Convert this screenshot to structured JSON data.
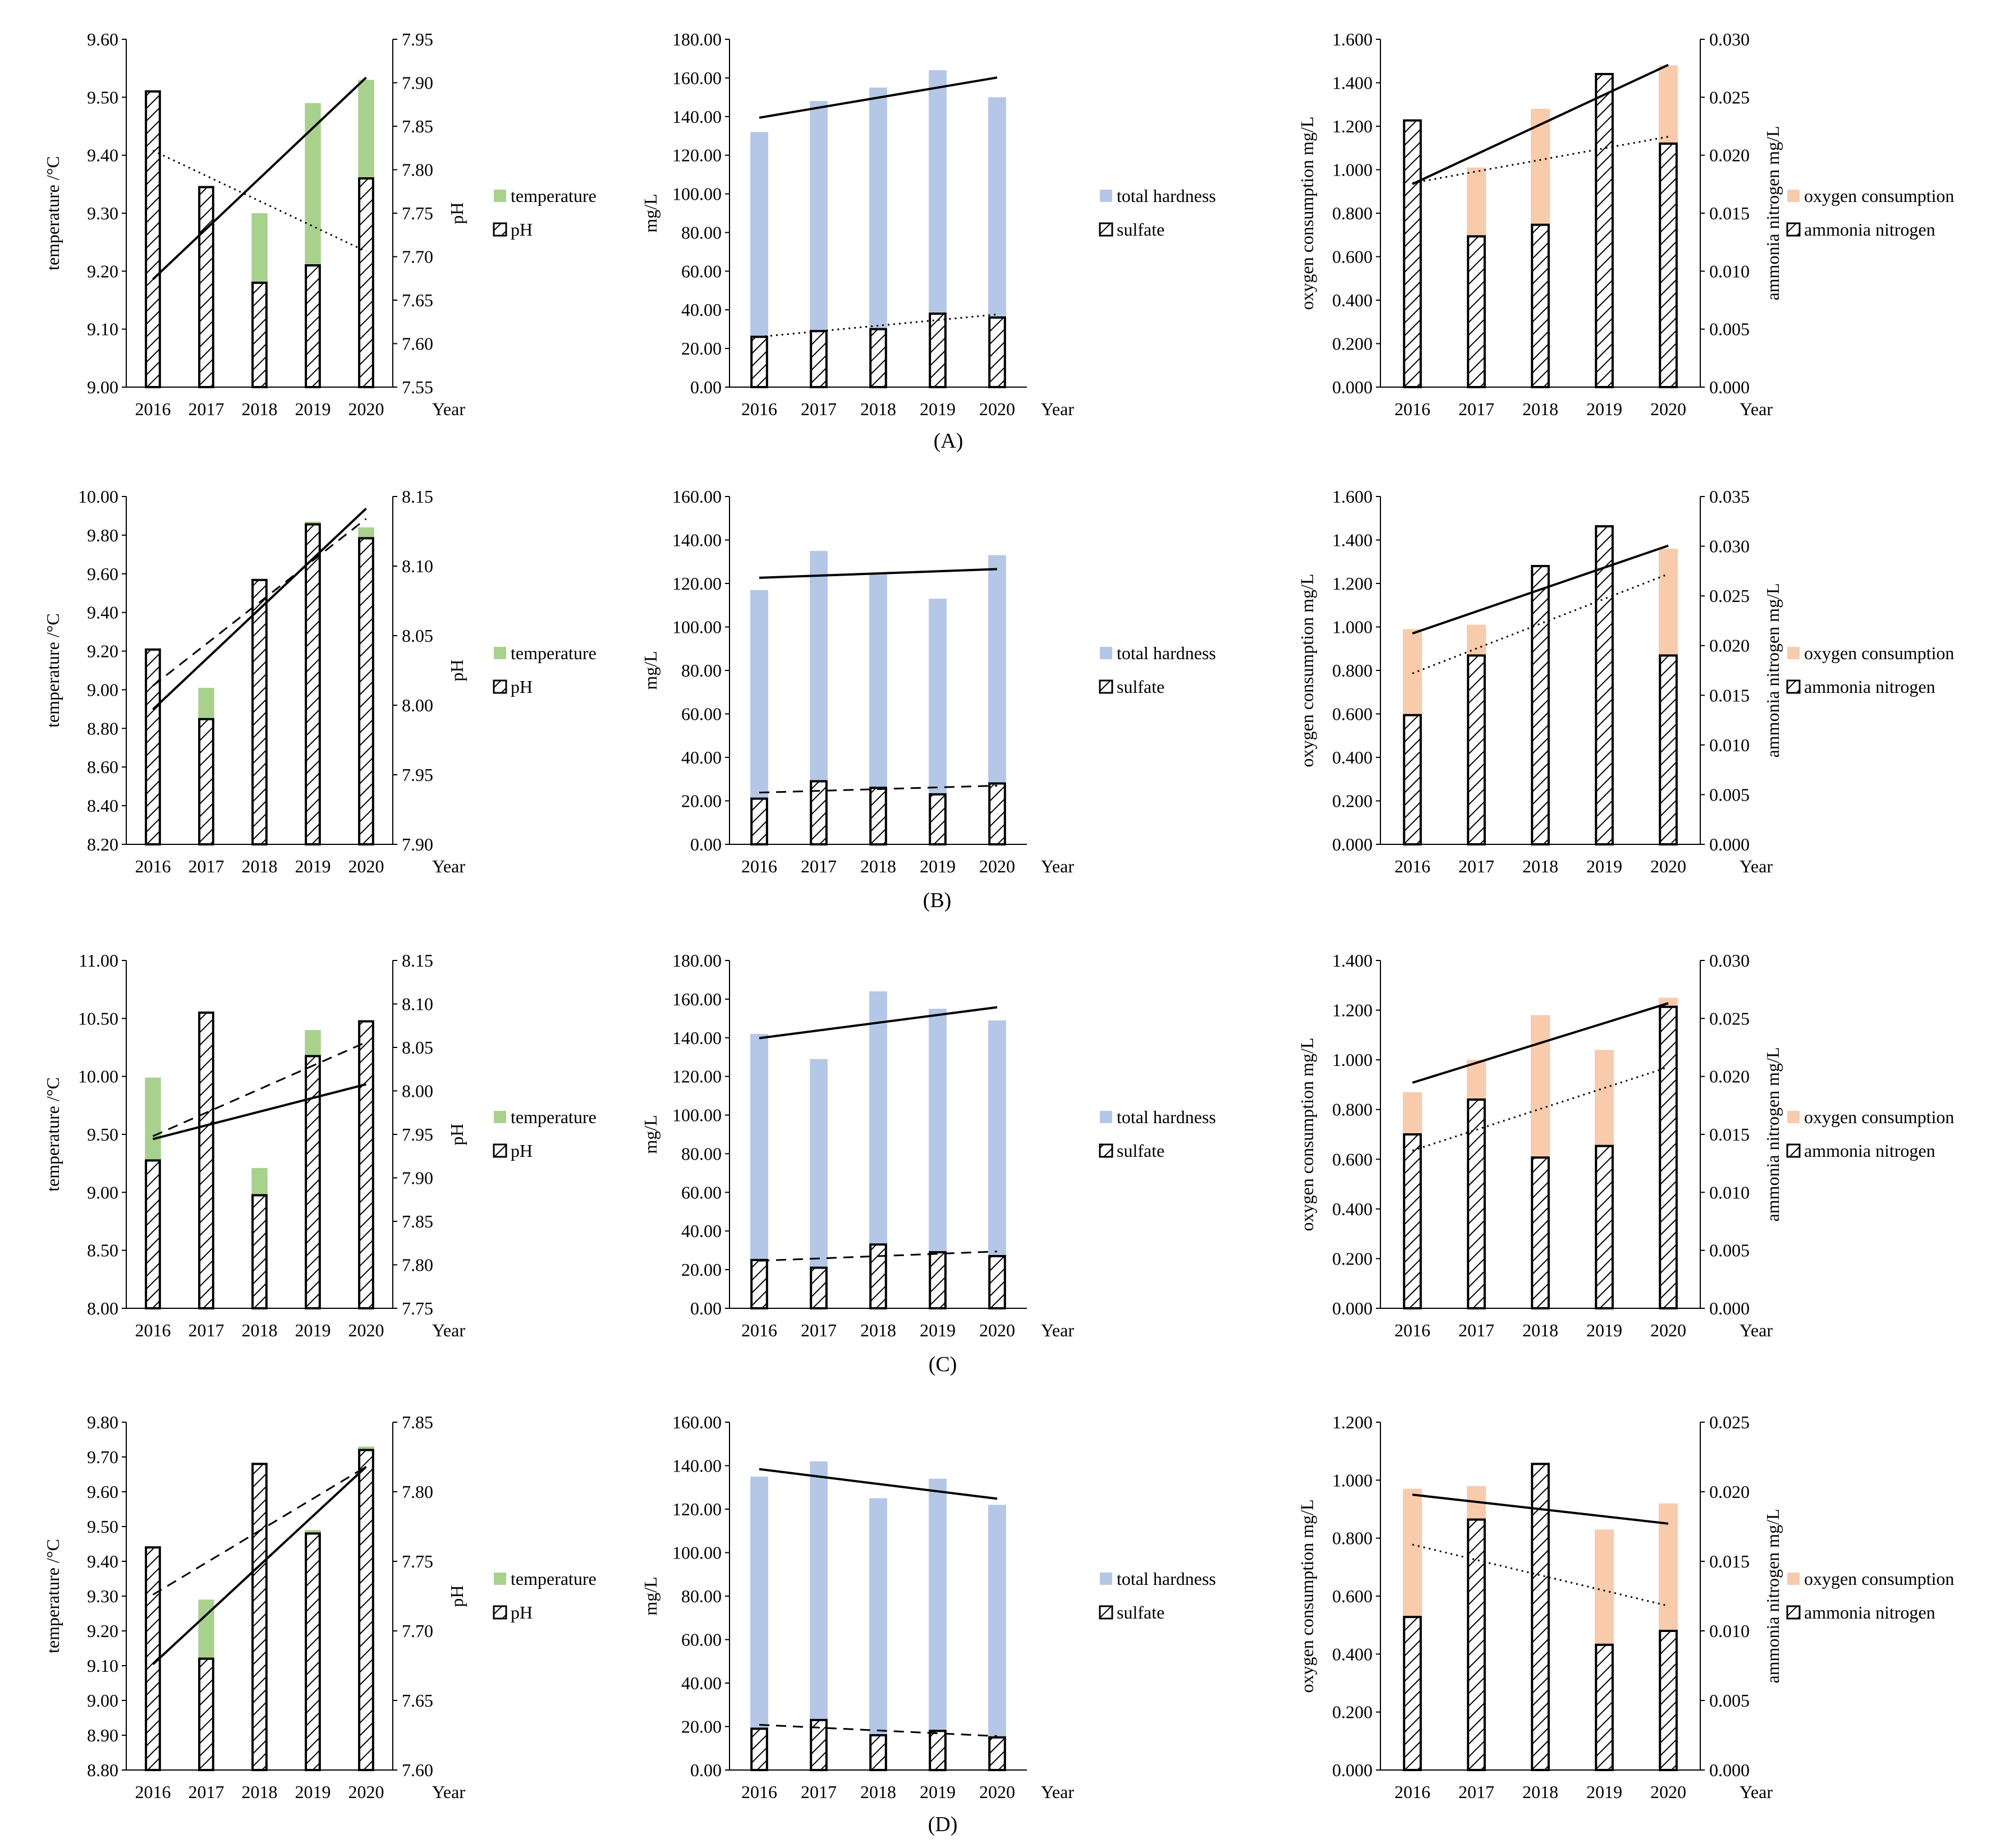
{
  "colors": {
    "temperature": "#a9d18e",
    "total_hardness": "#b4c7e7",
    "oxygen_consumption": "#f8cbad",
    "pattern_bar": "#ffffff",
    "axis": "#000000"
  },
  "panel_labels": [
    "(A)",
    "(B)",
    "(C)",
    "(D)"
  ],
  "year_label": "Year",
  "chart_data": [
    {
      "row": 0,
      "col": 0,
      "type": "bar",
      "categories": [
        "2016",
        "2017",
        "2018",
        "2019",
        "2020"
      ],
      "left_axis": {
        "label": "temperature /°C",
        "min": 9.0,
        "max": 9.6,
        "step": 0.1,
        "decimals": 2
      },
      "right_axis": {
        "label": "pH",
        "min": 7.55,
        "max": 7.95,
        "step": 0.05,
        "decimals": 2
      },
      "series": [
        {
          "name": "temperature",
          "axis": "left",
          "style": "solid",
          "color_key": "temperature",
          "values": [
            9.2,
            9.28,
            9.3,
            9.49,
            9.53
          ],
          "trend": "solid"
        },
        {
          "name": "pH",
          "axis": "right",
          "style": "hatched",
          "values": [
            7.89,
            7.78,
            7.67,
            7.69,
            7.79
          ],
          "trend": "dotted"
        }
      ]
    },
    {
      "row": 0,
      "col": 1,
      "type": "bar",
      "categories": [
        "2016",
        "2017",
        "2018",
        "2019",
        "2020"
      ],
      "left_axis": {
        "label": "mg/L",
        "min": 0,
        "max": 180,
        "step": 20,
        "decimals": 2
      },
      "series": [
        {
          "name": "total hardness",
          "axis": "left",
          "style": "solid",
          "color_key": "total_hardness",
          "values": [
            132,
            148,
            155,
            164,
            150
          ],
          "trend": "solid"
        },
        {
          "name": "sulfate",
          "axis": "left",
          "style": "hatched",
          "values": [
            26,
            29,
            30,
            38,
            36
          ],
          "trend": "dotted"
        }
      ]
    },
    {
      "row": 0,
      "col": 2,
      "type": "bar",
      "categories": [
        "2016",
        "2017",
        "2018",
        "2019",
        "2020"
      ],
      "left_axis": {
        "label": "oxygen consumption  mg/L",
        "min": 0,
        "max": 1.6,
        "step": 0.2,
        "decimals": 3
      },
      "right_axis": {
        "label": "ammonia nitrogen  mg/L",
        "min": 0,
        "max": 0.03,
        "step": 0.005,
        "decimals": 3
      },
      "series": [
        {
          "name": "oxygen consumption",
          "axis": "left",
          "style": "solid",
          "color_key": "oxygen_consumption",
          "values": [
            0.95,
            1.01,
            1.28,
            1.32,
            1.48
          ],
          "trend": "solid"
        },
        {
          "name": "ammonia nitrogen",
          "axis": "right",
          "style": "hatched",
          "values": [
            0.023,
            0.013,
            0.014,
            0.027,
            0.021
          ],
          "trend": "dotted"
        }
      ]
    },
    {
      "row": 1,
      "col": 0,
      "type": "bar",
      "categories": [
        "2016",
        "2017",
        "2018",
        "2019",
        "2020"
      ],
      "left_axis": {
        "label": "temperature /°C",
        "min": 8.2,
        "max": 10.0,
        "step": 0.2,
        "decimals": 2
      },
      "right_axis": {
        "label": "pH",
        "min": 7.9,
        "max": 8.15,
        "step": 0.05,
        "decimals": 2
      },
      "series": [
        {
          "name": "temperature",
          "axis": "left",
          "style": "solid",
          "color_key": "temperature",
          "values": [
            8.97,
            9.01,
            9.4,
            9.87,
            9.84
          ],
          "trend": "solid"
        },
        {
          "name": "pH",
          "axis": "right",
          "style": "hatched",
          "values": [
            8.04,
            7.99,
            8.09,
            8.13,
            8.12
          ],
          "trend": "dashed"
        }
      ]
    },
    {
      "row": 1,
      "col": 1,
      "type": "bar",
      "categories": [
        "2016",
        "2017",
        "2018",
        "2019",
        "2020"
      ],
      "left_axis": {
        "label": "mg/L",
        "min": 0,
        "max": 160,
        "step": 20,
        "decimals": 2
      },
      "series": [
        {
          "name": "total hardness",
          "axis": "left",
          "style": "solid",
          "color_key": "total_hardness",
          "values": [
            117,
            135,
            125,
            113,
            133
          ],
          "trend": "solid"
        },
        {
          "name": "sulfate",
          "axis": "left",
          "style": "hatched",
          "values": [
            21,
            29,
            26,
            23,
            28
          ],
          "trend": "dashed"
        }
      ]
    },
    {
      "row": 1,
      "col": 2,
      "type": "bar",
      "categories": [
        "2016",
        "2017",
        "2018",
        "2019",
        "2020"
      ],
      "left_axis": {
        "label": "oxygen consumption  mg/L",
        "min": 0,
        "max": 1.6,
        "step": 0.2,
        "decimals": 3
      },
      "right_axis": {
        "label": "ammonia nitrogen  mg/L",
        "min": 0,
        "max": 0.035,
        "step": 0.005,
        "decimals": 3
      },
      "series": [
        {
          "name": "oxygen consumption",
          "axis": "left",
          "style": "solid",
          "color_key": "oxygen_consumption",
          "values": [
            0.99,
            1.01,
            1.22,
            1.28,
            1.36
          ],
          "trend": "solid"
        },
        {
          "name": "ammonia nitrogen",
          "axis": "right",
          "style": "hatched",
          "values": [
            0.013,
            0.019,
            0.028,
            0.032,
            0.019
          ],
          "trend": "dotted"
        }
      ]
    },
    {
      "row": 2,
      "col": 0,
      "type": "bar",
      "categories": [
        "2016",
        "2017",
        "2018",
        "2019",
        "2020"
      ],
      "left_axis": {
        "label": "temperature /°C",
        "min": 8.0,
        "max": 11.0,
        "step": 0.5,
        "decimals": 2
      },
      "right_axis": {
        "label": "pH",
        "min": 7.75,
        "max": 8.15,
        "step": 0.05,
        "decimals": 2
      },
      "series": [
        {
          "name": "temperature",
          "axis": "left",
          "style": "solid",
          "color_key": "temperature",
          "values": [
            9.99,
            9.0,
            9.21,
            10.4,
            9.88
          ],
          "trend": "solid"
        },
        {
          "name": "pH",
          "axis": "right",
          "style": "hatched",
          "values": [
            7.92,
            8.09,
            7.88,
            8.04,
            8.08
          ],
          "trend": "dashed"
        }
      ]
    },
    {
      "row": 2,
      "col": 1,
      "type": "bar",
      "categories": [
        "2016",
        "2017",
        "2018",
        "2019",
        "2020"
      ],
      "left_axis": {
        "label": "mg/L",
        "min": 0,
        "max": 180,
        "step": 20,
        "decimals": 2
      },
      "series": [
        {
          "name": "total hardness",
          "axis": "left",
          "style": "solid",
          "color_key": "total_hardness",
          "values": [
            142,
            129,
            164,
            155,
            149
          ],
          "trend": "solid"
        },
        {
          "name": "sulfate",
          "axis": "left",
          "style": "hatched",
          "values": [
            25,
            21,
            33,
            29,
            27
          ],
          "trend": "dashed"
        }
      ]
    },
    {
      "row": 2,
      "col": 2,
      "type": "bar",
      "categories": [
        "2016",
        "2017",
        "2018",
        "2019",
        "2020"
      ],
      "left_axis": {
        "label": "oxygen consumption  mg/L",
        "min": 0,
        "max": 1.4,
        "step": 0.2,
        "decimals": 3
      },
      "right_axis": {
        "label": "ammonia nitrogen  mg/L",
        "min": 0,
        "max": 0.03,
        "step": 0.005,
        "decimals": 3
      },
      "series": [
        {
          "name": "oxygen consumption",
          "axis": "left",
          "style": "solid",
          "color_key": "oxygen_consumption",
          "values": [
            0.87,
            1.0,
            1.18,
            1.04,
            1.25
          ],
          "trend": "solid"
        },
        {
          "name": "ammonia nitrogen",
          "axis": "right",
          "style": "hatched",
          "values": [
            0.015,
            0.018,
            0.013,
            0.014,
            0.026
          ],
          "trend": "dotted"
        }
      ]
    },
    {
      "row": 3,
      "col": 0,
      "type": "bar",
      "categories": [
        "2016",
        "2017",
        "2018",
        "2019",
        "2020"
      ],
      "left_axis": {
        "label": "temperature /°C",
        "min": 8.8,
        "max": 9.8,
        "step": 0.1,
        "decimals": 2
      },
      "right_axis": {
        "label": "pH",
        "min": 7.6,
        "max": 7.85,
        "step": 0.05,
        "decimals": 2
      },
      "series": [
        {
          "name": "temperature",
          "axis": "left",
          "style": "solid",
          "color_key": "temperature",
          "values": [
            9.12,
            9.29,
            9.31,
            9.49,
            9.73
          ],
          "trend": "solid"
        },
        {
          "name": "pH",
          "axis": "right",
          "style": "hatched",
          "values": [
            7.76,
            7.68,
            7.82,
            7.77,
            7.83
          ],
          "trend": "dashed"
        }
      ]
    },
    {
      "row": 3,
      "col": 1,
      "type": "bar",
      "categories": [
        "2016",
        "2017",
        "2018",
        "2019",
        "2020"
      ],
      "left_axis": {
        "label": "mg/L",
        "min": 0,
        "max": 160,
        "step": 20,
        "decimals": 2
      },
      "series": [
        {
          "name": "total hardness",
          "axis": "left",
          "style": "solid",
          "color_key": "total_hardness",
          "values": [
            135,
            142,
            125,
            134,
            122
          ],
          "trend": "solid"
        },
        {
          "name": "sulfate",
          "axis": "left",
          "style": "hatched",
          "values": [
            19,
            23,
            16,
            18,
            15
          ],
          "trend": "dashed"
        }
      ]
    },
    {
      "row": 3,
      "col": 2,
      "type": "bar",
      "categories": [
        "2016",
        "2017",
        "2018",
        "2019",
        "2020"
      ],
      "left_axis": {
        "label": "oxygen consumption  mg/L",
        "min": 0,
        "max": 1.2,
        "step": 0.2,
        "decimals": 3
      },
      "right_axis": {
        "label": "ammonia nitrogen  mg/L",
        "min": 0,
        "max": 0.025,
        "step": 0.005,
        "decimals": 3
      },
      "series": [
        {
          "name": "oxygen consumption",
          "axis": "left",
          "style": "solid",
          "color_key": "oxygen_consumption",
          "values": [
            0.97,
            0.98,
            0.8,
            0.83,
            0.92
          ],
          "trend": "solid"
        },
        {
          "name": "ammonia nitrogen",
          "axis": "right",
          "style": "hatched",
          "values": [
            0.011,
            0.018,
            0.022,
            0.009,
            0.01
          ],
          "trend": "dotted"
        }
      ]
    }
  ]
}
